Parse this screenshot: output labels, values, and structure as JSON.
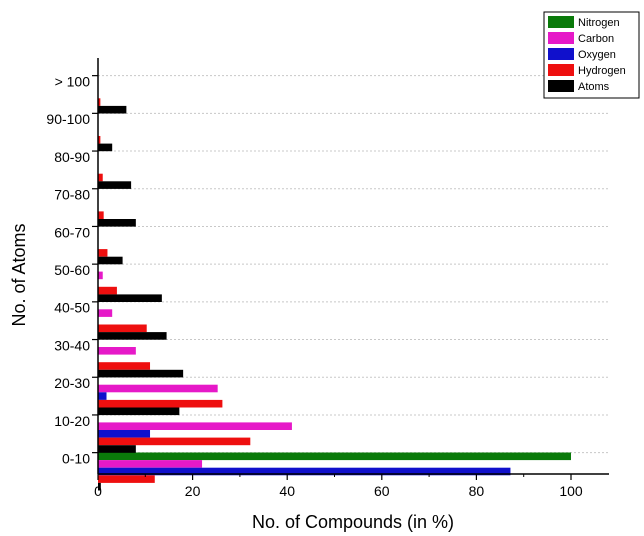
{
  "chart_data": {
    "type": "bar",
    "orientation": "horizontal",
    "title": "",
    "xlabel": "No. of Compounds (in %)",
    "ylabel": "No. of Atoms",
    "xlim": [
      0,
      108
    ],
    "xticks": [
      0,
      20,
      40,
      60,
      80,
      100
    ],
    "categories": [
      "0-10",
      "10-20",
      "20-30",
      "30-40",
      "40-50",
      "50-60",
      "60-70",
      "70-80",
      "80-90",
      "90-100",
      "> 100"
    ],
    "legend_position": "top-right",
    "grid": "dotted horizontal",
    "series": [
      {
        "name": "Nitrogen",
        "color": "#0a7a0a",
        "values": [
          100,
          0,
          0,
          0,
          0,
          0,
          0,
          0,
          0,
          0,
          0
        ]
      },
      {
        "name": "Carbon",
        "color": "#e619c8",
        "values": [
          22,
          41,
          25.3,
          8,
          3,
          1,
          0,
          0,
          0,
          0,
          0
        ]
      },
      {
        "name": "Oxygen",
        "color": "#1010cc",
        "values": [
          87.2,
          11,
          1.8,
          0,
          0,
          0,
          0,
          0,
          0,
          0,
          0
        ]
      },
      {
        "name": "Hydrogen",
        "color": "#ee0f0f",
        "values": [
          12,
          32.2,
          26.3,
          11,
          10.3,
          4,
          2,
          1.2,
          1,
          0.5,
          0.5
        ]
      },
      {
        "name": "Atoms",
        "color": "#000000",
        "values": [
          0.6,
          8,
          17.2,
          18,
          14.5,
          13.5,
          5.2,
          8,
          7,
          3,
          6
        ]
      }
    ]
  }
}
